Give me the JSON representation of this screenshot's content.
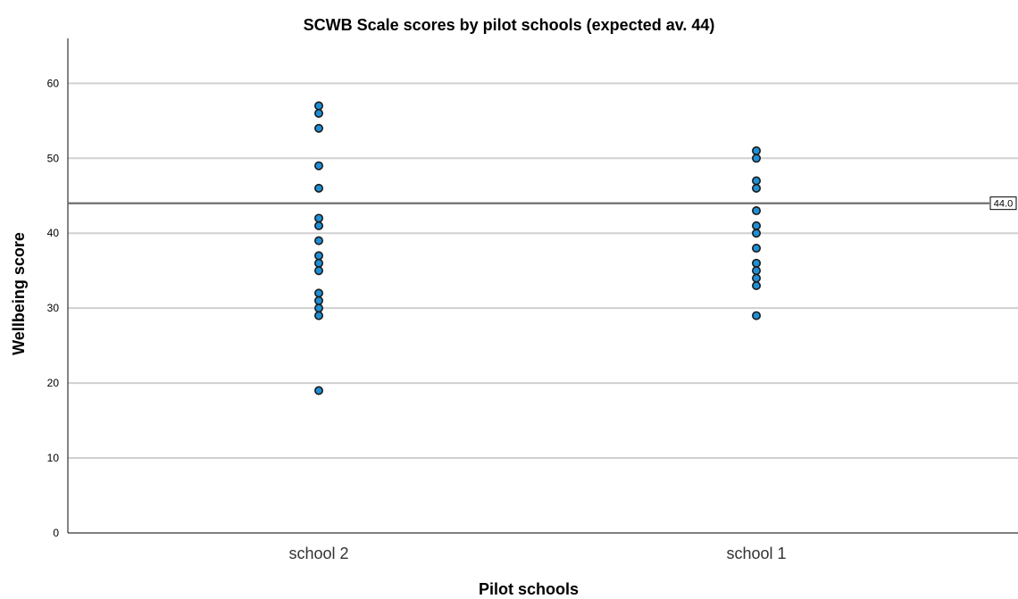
{
  "chart_data": {
    "type": "scatter",
    "title": "SCWB Scale scores by pilot schools (expected av. 44)",
    "xlabel": "Pilot schools",
    "ylabel": "Wellbeing score",
    "categories": [
      "school 2",
      "school 1"
    ],
    "ylim": [
      0,
      66
    ],
    "yticks": [
      0,
      10,
      20,
      30,
      40,
      50,
      60
    ],
    "grid": true,
    "reference_line": {
      "value": 44,
      "label": "44.0"
    },
    "series": [
      {
        "category": "school 2",
        "values": [
          57,
          56,
          54,
          49,
          46,
          42,
          41,
          39,
          37,
          36,
          35,
          32,
          31,
          30,
          29,
          19
        ]
      },
      {
        "category": "school 1",
        "values": [
          51,
          50,
          47,
          46,
          43,
          41,
          40,
          38,
          36,
          35,
          34,
          33,
          29
        ]
      }
    ],
    "colors": {
      "point_fill": "#1f8fd6",
      "point_stroke": "#1a1a1a",
      "grid": "#d0d0d0",
      "axis": "#333333",
      "refline": "#666666"
    }
  }
}
